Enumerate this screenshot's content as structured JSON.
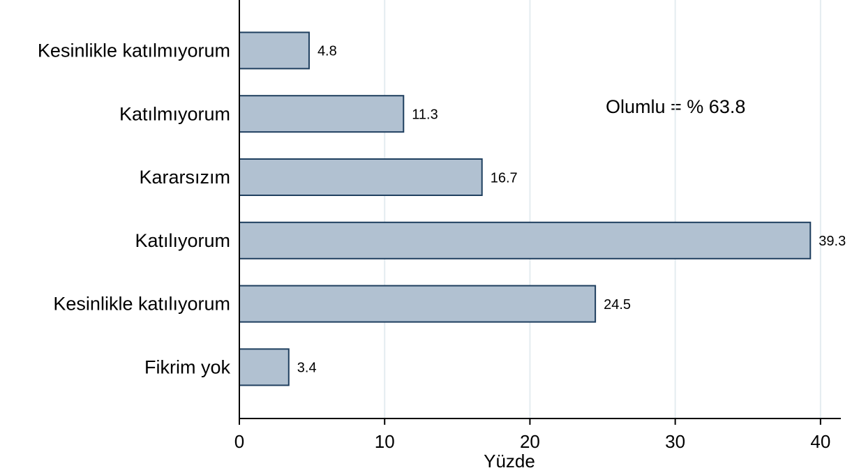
{
  "chart_data": {
    "type": "barh",
    "categories": [
      "Kesinlikle katılmıyorum",
      "Katılmıyorum",
      "Kararsızım",
      "Katılıyorum",
      "Kesinlikle katılıyorum",
      "Fikrim yok"
    ],
    "values": [
      4.8,
      11.3,
      16.7,
      39.3,
      24.5,
      3.4
    ],
    "color": "#b1c1d1",
    "edge_color": "#1f3f5f",
    "xlabel": "Yüzde",
    "xlim": [
      0,
      41.4
    ],
    "xticks": [
      0,
      10,
      20,
      30,
      40
    ],
    "grid": true,
    "annotation": "Olumlu = % 63.8",
    "annotation_color": "#ff0000"
  }
}
